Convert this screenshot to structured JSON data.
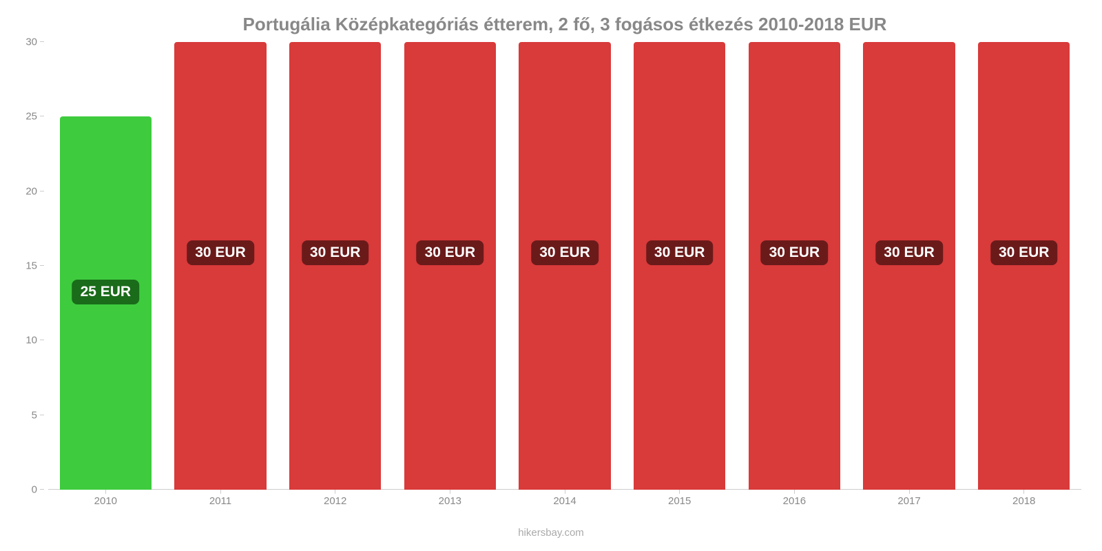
{
  "chart": {
    "type": "bar",
    "title": "Portugália Középkategóriás étterem, 2 fő, 3 fogásos étkezés 2010-2018 EUR",
    "title_color": "#888888",
    "title_fontsize": 26,
    "background_color": "#ffffff",
    "ylim": [
      0,
      30
    ],
    "ytick_step": 5,
    "yticks": [
      0,
      5,
      10,
      15,
      20,
      25,
      30
    ],
    "axis_color": "#cccccc",
    "tick_label_color": "#888888",
    "tick_label_fontsize": 15,
    "bar_width": 0.8,
    "value_label_fontsize": 21,
    "value_label_text_color": "#ffffff",
    "value_label_radius": 8,
    "categories": [
      "2010",
      "2011",
      "2012",
      "2013",
      "2014",
      "2015",
      "2016",
      "2017",
      "2018"
    ],
    "values": [
      25,
      30,
      30,
      30,
      30,
      30,
      30,
      30,
      30
    ],
    "value_labels": [
      "25 EUR",
      "30 EUR",
      "30 EUR",
      "30 EUR",
      "30 EUR",
      "30 EUR",
      "30 EUR",
      "30 EUR",
      "30 EUR"
    ],
    "bar_colors": [
      "#3ecc3e",
      "#d93a3a",
      "#d93a3a",
      "#d93a3a",
      "#d93a3a",
      "#d93a3a",
      "#d93a3a",
      "#d93a3a",
      "#d93a3a"
    ],
    "value_label_bg_colors": [
      "#1a6b1a",
      "#6b1a1a",
      "#6b1a1a",
      "#6b1a1a",
      "#6b1a1a",
      "#6b1a1a",
      "#6b1a1a",
      "#6b1a1a",
      "#6b1a1a"
    ],
    "value_label_vpos_pct": 53
  },
  "attribution": "hikersbay.com"
}
